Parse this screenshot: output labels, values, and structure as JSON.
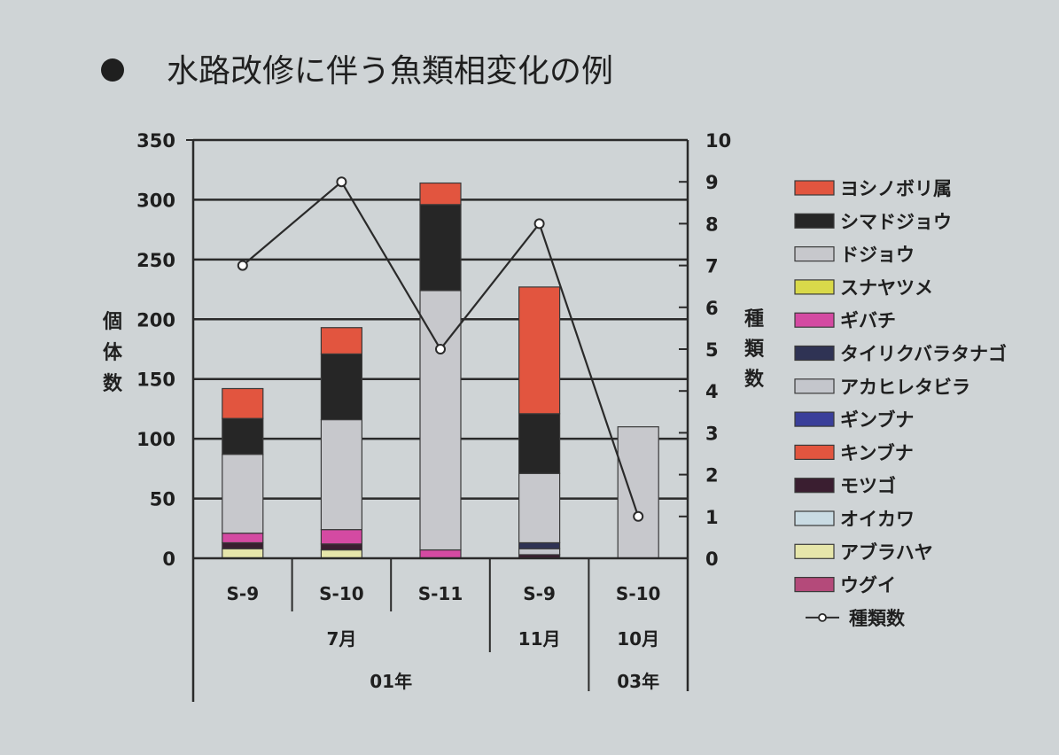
{
  "title": "水路改修に伴う魚類相変化の例",
  "chart_data": {
    "type": "bar",
    "stacked": true,
    "title": "水路改修に伴う魚類相変化の例",
    "categories": [
      "S-9",
      "S-10",
      "S-11",
      "S-9",
      "S-10"
    ],
    "category_groups": [
      {
        "label": "7月",
        "span": 3
      },
      {
        "label": "11月",
        "span": 1
      },
      {
        "label": "10月",
        "span": 1
      }
    ],
    "year_groups": [
      {
        "label": "01年",
        "span": 4
      },
      {
        "label": "03年",
        "span": 1
      }
    ],
    "ylabel": "個体数",
    "y2label": "種類数",
    "ylim": [
      0,
      350
    ],
    "y2lim": [
      0,
      10
    ],
    "yticks": [
      "0",
      "50",
      "100",
      "150",
      "200",
      "250",
      "300",
      "350"
    ],
    "y2ticks": [
      "0",
      "1",
      "2",
      "3",
      "4",
      "5",
      "6",
      "7",
      "8",
      "9",
      "10"
    ],
    "grid": true,
    "legend_position": "right",
    "series": [
      {
        "name": "ウグイ",
        "color": "#b44a7a",
        "values": [
          0,
          0,
          0,
          0,
          0
        ]
      },
      {
        "name": "アブラハヤ",
        "color": "#e6e6aa",
        "values": [
          8,
          7,
          0,
          0,
          0
        ]
      },
      {
        "name": "オイカワ",
        "color": "#c9dbe3",
        "values": [
          0,
          0,
          0,
          0,
          0
        ]
      },
      {
        "name": "モツゴ",
        "color": "#3a1e30",
        "values": [
          5,
          5,
          0,
          3,
          0
        ]
      },
      {
        "name": "キンブナ",
        "color": "#e2553f",
        "values": [
          0,
          0,
          0,
          0,
          0
        ]
      },
      {
        "name": "ギンブナ",
        "color": "#3a3f9a",
        "values": [
          0,
          0,
          0,
          0,
          0
        ]
      },
      {
        "name": "アカヒレタビラ",
        "color": "#c4c6cc",
        "values": [
          0,
          0,
          0,
          5,
          0
        ]
      },
      {
        "name": "タイリクバラタナゴ",
        "color": "#2f3354",
        "values": [
          0,
          0,
          0,
          5,
          0
        ]
      },
      {
        "name": "ギバチ",
        "color": "#d44aa2",
        "values": [
          8,
          12,
          7,
          0,
          0
        ]
      },
      {
        "name": "スナヤツメ",
        "color": "#d9d94a",
        "values": [
          0,
          0,
          0,
          0,
          0
        ]
      },
      {
        "name": "ドジョウ",
        "color": "#c7c8cc",
        "values": [
          66,
          92,
          217,
          58,
          110
        ]
      },
      {
        "name": "シマドジョウ",
        "color": "#262626",
        "values": [
          30,
          55,
          72,
          50,
          0
        ]
      },
      {
        "name": "ヨシノボリ属",
        "color": "#e2553f",
        "values": [
          25,
          22,
          18,
          106,
          0
        ]
      }
    ],
    "legend_order": [
      "ヨシノボリ属",
      "シマドジョウ",
      "ドジョウ",
      "スナヤツメ",
      "ギバチ",
      "タイリクバラタナゴ",
      "アカヒレタビラ",
      "ギンブナ",
      "キンブナ",
      "モツゴ",
      "オイカワ",
      "アブラハヤ",
      "ウグイ"
    ],
    "line_series": {
      "name": "種類数",
      "axis": "right",
      "values": [
        7,
        9,
        5,
        8,
        1
      ],
      "color": "#2a2a2a"
    }
  }
}
